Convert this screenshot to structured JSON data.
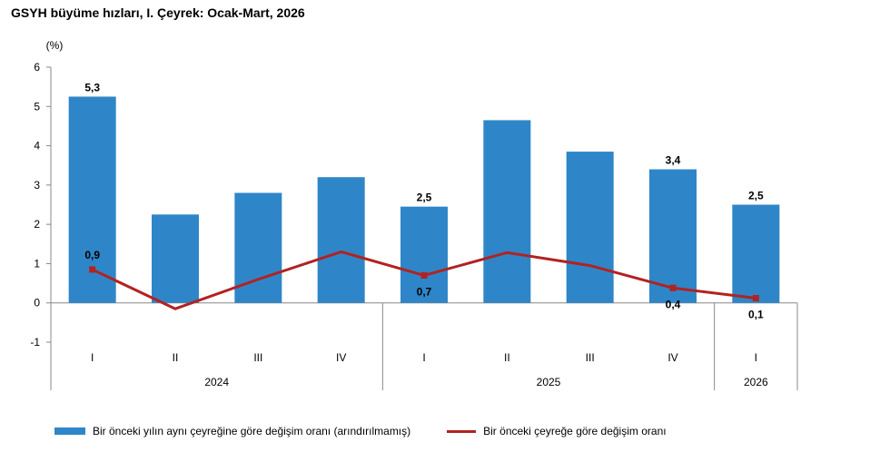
{
  "title": "GSYH büyüme hızları, I. Çeyrek: Ocak-Mart, 2026",
  "colors": {
    "bar": "#2E86C8",
    "line": "#B22222"
  },
  "chart_data": {
    "type": "bar",
    "title": "GSYH büyüme hızları, I. Çeyrek: Ocak-Mart, 2026",
    "ylabel": "(%)",
    "xlabel": "",
    "ylim": [
      -1,
      6
    ],
    "yticks": [
      "-1",
      "0",
      "1",
      "2",
      "3",
      "4",
      "5",
      "6"
    ],
    "categories": [
      "I",
      "II",
      "III",
      "IV",
      "I",
      "II",
      "III",
      "IV",
      "I"
    ],
    "year_groups": [
      {
        "label": "2024",
        "count": 4
      },
      {
        "label": "2025",
        "count": 4
      },
      {
        "label": "2026",
        "count": 1
      }
    ],
    "series": [
      {
        "name": "Bir önceki yılın aynı çeyreğine göre değişim oranı (arındırılmamış)",
        "type": "bar",
        "values": [
          5.25,
          2.25,
          2.8,
          3.2,
          2.45,
          4.65,
          3.85,
          3.4,
          2.5
        ],
        "labels": [
          "5,3",
          "",
          "",
          "",
          "2,5",
          "",
          "",
          "3,4",
          "2,5"
        ]
      },
      {
        "name": "Bir önceki çeyreğe göre değişim oranı",
        "type": "line",
        "values": [
          0.85,
          -0.15,
          0.6,
          1.3,
          0.7,
          1.28,
          0.95,
          0.38,
          0.12
        ],
        "labels": [
          "0,9",
          "",
          "",
          "",
          "0,7",
          "",
          "",
          "0,4",
          "0,1"
        ],
        "label_positions": [
          "above",
          "",
          "",
          "",
          "below",
          "",
          "",
          "below",
          "below"
        ]
      }
    ],
    "grid": false,
    "legend_position": "bottom"
  }
}
